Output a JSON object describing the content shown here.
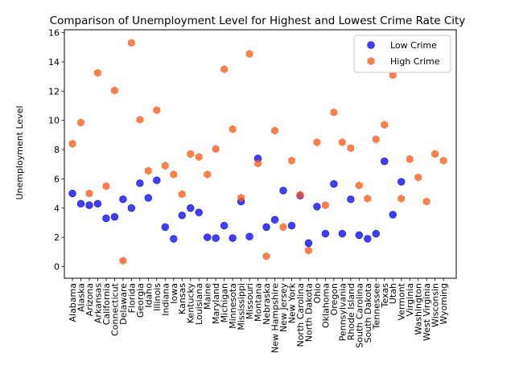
{
  "chart_data": {
    "type": "scatter",
    "title": "Comparison of Unemployment Level for Highest and Lowest Crime Rate City",
    "xlabel": "",
    "ylabel": "Unemployment Level",
    "ylim": [
      -0.8,
      16.2
    ],
    "yticks": [
      0,
      2,
      4,
      6,
      8,
      10,
      12,
      14,
      16
    ],
    "legend_position": "upper-right",
    "grid": false,
    "categories": [
      "Alabama",
      "Alaska",
      "Arizona",
      "Arkansas",
      "California",
      "Connecticut",
      "Delaware",
      "Florida",
      "Georgia",
      "Idaho",
      "Illinois",
      "Indiana",
      "Iowa",
      "Kansas",
      "Kentucky",
      "Louisiana",
      "Maine",
      "Maryland",
      "Michigan",
      "Minnesota",
      "Mississippi",
      "Missouri",
      "Montana",
      "Nebraska",
      "New Hampshire",
      "New Jersey",
      "New York",
      "North Carolina",
      "North Dakota",
      "Ohio",
      "Oklahoma",
      "Oregon",
      "Pennsylvania",
      "Rhode Island",
      "South Carolina",
      "South Dakota",
      "Tennessee",
      "Texas",
      "Utah",
      "Vermont",
      "Virginia",
      "Washington",
      "West Virginia",
      "Wisconsin",
      "Wyoming"
    ],
    "series": [
      {
        "name": "Low Crime",
        "color": "#0000ee",
        "marker": "circle",
        "values": [
          5.0,
          4.3,
          4.2,
          4.3,
          3.3,
          3.4,
          4.6,
          4.0,
          5.7,
          4.7,
          5.9,
          2.7,
          1.9,
          3.5,
          4.0,
          3.7,
          2.0,
          1.95,
          2.8,
          1.95,
          4.45,
          2.05,
          7.4,
          2.7,
          3.2,
          5.2,
          2.8,
          4.85,
          1.6,
          4.1,
          2.25,
          5.65,
          2.25,
          4.6,
          2.15,
          1.9,
          2.25,
          7.2,
          3.55,
          5.8,
          null,
          null,
          null,
          null,
          null
        ]
      },
      {
        "name": "High Crime",
        "color": "#ff5511",
        "marker": "hexagon",
        "values": [
          8.4,
          9.85,
          5.0,
          13.25,
          5.5,
          12.05,
          0.4,
          15.3,
          10.05,
          6.55,
          10.7,
          6.9,
          6.3,
          4.95,
          7.7,
          7.5,
          6.3,
          8.05,
          13.5,
          9.4,
          4.7,
          14.55,
          7.05,
          0.7,
          9.3,
          2.7,
          7.25,
          4.9,
          1.1,
          8.5,
          4.2,
          10.55,
          8.5,
          8.1,
          5.55,
          4.65,
          8.7,
          9.7,
          13.1,
          4.65,
          7.35,
          6.1,
          4.45,
          7.7,
          7.25
        ]
      }
    ]
  }
}
